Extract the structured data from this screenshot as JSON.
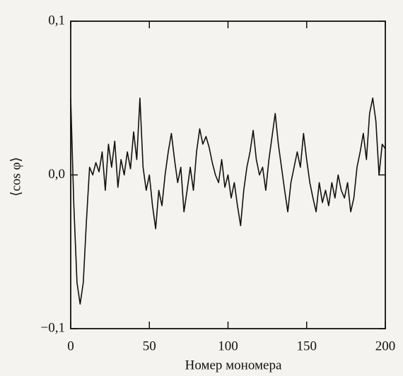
{
  "chart_data": {
    "type": "line",
    "xlabel": "Номер мономера",
    "ylabel": "⟨cos φ⟩",
    "x": [
      0,
      2,
      4,
      6,
      8,
      10,
      12,
      14,
      16,
      18,
      20,
      22,
      24,
      26,
      28,
      30,
      32,
      34,
      36,
      38,
      40,
      42,
      44,
      46,
      48,
      50,
      52,
      54,
      56,
      58,
      60,
      62,
      64,
      66,
      68,
      70,
      72,
      74,
      76,
      78,
      80,
      82,
      84,
      86,
      88,
      90,
      92,
      94,
      96,
      98,
      100,
      102,
      104,
      106,
      108,
      110,
      112,
      114,
      116,
      118,
      120,
      122,
      124,
      126,
      128,
      130,
      132,
      134,
      136,
      138,
      140,
      142,
      144,
      146,
      148,
      150,
      152,
      154,
      156,
      158,
      160,
      162,
      164,
      166,
      168,
      170,
      172,
      174,
      176,
      178,
      180,
      182,
      184,
      186,
      188,
      190,
      192,
      194,
      196,
      198,
      200
    ],
    "series": [
      {
        "color": "#111111",
        "values": [
          0.05,
          -0.02,
          -0.07,
          -0.084,
          -0.07,
          -0.03,
          0.005,
          0.0,
          0.008,
          0.002,
          0.015,
          -0.01,
          0.02,
          0.005,
          0.022,
          -0.008,
          0.01,
          0.0,
          0.015,
          0.004,
          0.028,
          0.01,
          0.05,
          0.005,
          -0.01,
          0.0,
          -0.02,
          -0.035,
          -0.01,
          -0.02,
          0.0,
          0.015,
          0.027,
          0.01,
          -0.005,
          0.005,
          -0.024,
          -0.01,
          0.005,
          -0.01,
          0.015,
          0.03,
          0.02,
          0.025,
          0.018,
          0.008,
          0.0,
          -0.005,
          0.01,
          -0.008,
          0.0,
          -0.015,
          -0.005,
          -0.02,
          -0.033,
          -0.01,
          0.005,
          0.015,
          0.029,
          0.01,
          0.0,
          0.005,
          -0.01,
          0.01,
          0.025,
          0.04,
          0.02,
          0.005,
          -0.01,
          -0.024,
          -0.005,
          0.005,
          0.015,
          0.005,
          0.027,
          0.01,
          -0.005,
          -0.015,
          -0.024,
          -0.005,
          -0.018,
          -0.01,
          -0.02,
          -0.005,
          -0.015,
          0.0,
          -0.01,
          -0.015,
          -0.005,
          -0.024,
          -0.015,
          0.005,
          0.015,
          0.027,
          0.01,
          0.04,
          0.05,
          0.035,
          0.0,
          0.02,
          0.017
        ]
      }
    ],
    "xlim": [
      0,
      200
    ],
    "xticks": [
      0,
      50,
      100,
      150,
      200
    ],
    "ylim": [
      -0.1,
      0.1
    ],
    "yticks": [
      {
        "value": -0.1,
        "label": "−0,1"
      },
      {
        "value": 0,
        "label": "0,0"
      },
      {
        "value": 0.1,
        "label": "0,1"
      }
    ]
  }
}
